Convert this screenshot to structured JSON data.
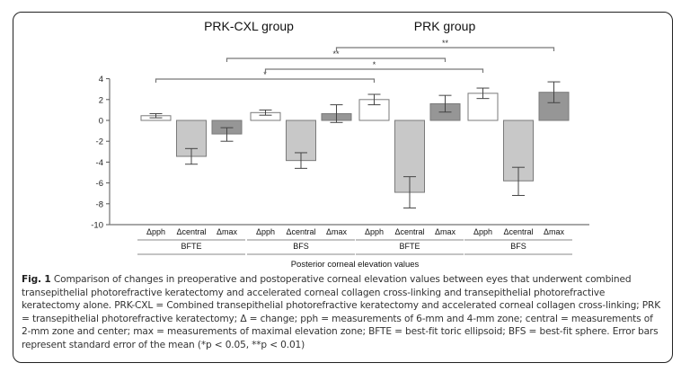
{
  "chart_data": {
    "type": "bar",
    "group_titles": [
      "PRK-CXL group",
      "PRK group"
    ],
    "subgroups": [
      "BFTE",
      "BFS",
      "BFTE",
      "BFS"
    ],
    "categories": [
      "Δpph",
      "Δcentral",
      "Δmax"
    ],
    "xlabel": "Posterior corneal elevation values",
    "ylabel": "",
    "ylim": [
      -10,
      4
    ],
    "yticks": [
      4,
      2,
      0,
      -2,
      -4,
      -6,
      -8,
      -10
    ],
    "bars": [
      {
        "group": "PRK-CXL group",
        "subgroup": "BFTE",
        "category": "Δpph",
        "value": 0.45,
        "err_low": 0.25,
        "err_high": 0.65
      },
      {
        "group": "PRK-CXL group",
        "subgroup": "BFTE",
        "category": "Δcentral",
        "value": -3.45,
        "err_low": -4.2,
        "err_high": -2.7
      },
      {
        "group": "PRK-CXL group",
        "subgroup": "BFTE",
        "category": "Δmax",
        "value": -1.3,
        "err_low": -2.0,
        "err_high": -0.7
      },
      {
        "group": "PRK-CXL group",
        "subgroup": "BFS",
        "category": "Δpph",
        "value": 0.75,
        "err_low": 0.5,
        "err_high": 1.0
      },
      {
        "group": "PRK-CXL group",
        "subgroup": "BFS",
        "category": "Δcentral",
        "value": -3.85,
        "err_low": -4.6,
        "err_high": -3.1
      },
      {
        "group": "PRK-CXL group",
        "subgroup": "BFS",
        "category": "Δmax",
        "value": 0.65,
        "err_low": -0.2,
        "err_high": 1.5
      },
      {
        "group": "PRK group",
        "subgroup": "BFTE",
        "category": "Δpph",
        "value": 2.0,
        "err_low": 1.5,
        "err_high": 2.5
      },
      {
        "group": "PRK group",
        "subgroup": "BFTE",
        "category": "Δcentral",
        "value": -6.9,
        "err_low": -8.4,
        "err_high": -5.4
      },
      {
        "group": "PRK group",
        "subgroup": "BFTE",
        "category": "Δmax",
        "value": 1.6,
        "err_low": 0.8,
        "err_high": 2.4
      },
      {
        "group": "PRK group",
        "subgroup": "BFS",
        "category": "Δpph",
        "value": 2.6,
        "err_low": 2.1,
        "err_high": 3.1
      },
      {
        "group": "PRK group",
        "subgroup": "BFS",
        "category": "Δcentral",
        "value": -5.8,
        "err_low": -7.2,
        "err_high": -4.5
      },
      {
        "group": "PRK group",
        "subgroup": "BFS",
        "category": "Δmax",
        "value": 2.7,
        "err_low": 1.7,
        "err_high": 3.7
      }
    ],
    "significance": [
      {
        "from_bar": 0,
        "to_bar": 6,
        "label": "*"
      },
      {
        "from_bar": 3,
        "to_bar": 9,
        "label": "*"
      },
      {
        "from_bar": 2,
        "to_bar": 8,
        "label": "**"
      },
      {
        "from_bar": 5,
        "to_bar": 11,
        "label": "**"
      }
    ],
    "colors": {
      "Δpph": "#ffffff",
      "Δcentral": "#c8c8c8",
      "Δmax": "#969696",
      "edge": "#7a7a7a",
      "error": "#444444",
      "axis": "#888888"
    },
    "legend": "none",
    "grid": false
  },
  "caption": {
    "label": "Fig. 1",
    "text": "Comparison of changes in preoperative and postoperative corneal elevation values between eyes that underwent combined transepithelial photorefractive keratectomy and accelerated corneal collagen cross-linking and transepithelial photorefractive keratectomy alone. PRK-CXL = Combined transepithelial photorefractive keratectomy and accelerated corneal collagen cross-linking; PRK = transepithelial photorefractive keratectomy; Δ = change; pph = measurements of 6-mm and 4-mm zone; central = measurements of 2-mm zone and center; max = measurements of maximal elevation zone; BFTE = best-fit toric ellipsoid; BFS = best-fit sphere. Error bars represent standard error of the mean (*p < 0.05, **p < 0.01)"
  }
}
